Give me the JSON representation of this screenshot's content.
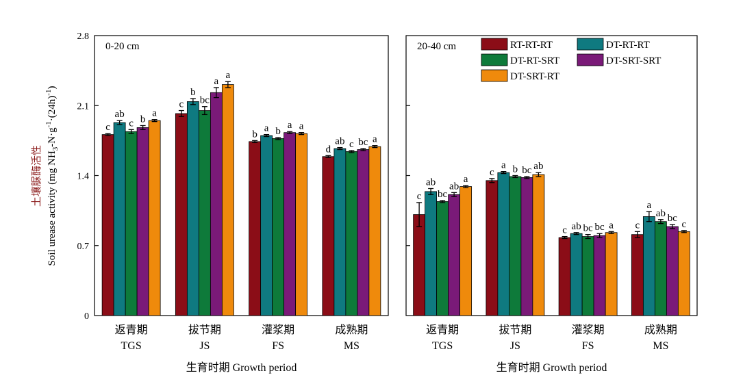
{
  "chart_data": {
    "type": "bar",
    "y_axis": {
      "label_cn": "土壤脲酶活性",
      "label": "Soil urease activity (mg NH3-N·g-1·(24h)-1)",
      "ylim": [
        0,
        2.8
      ],
      "ticks": [
        "0",
        "0.7",
        "1.4",
        "2.1",
        "2.8"
      ]
    },
    "series": [
      {
        "name": "RT-RT-RT",
        "color": "#8b0d17"
      },
      {
        "name": "DT-RT-RT",
        "color": "#0f7a80"
      },
      {
        "name": "DT-RT-SRT",
        "color": "#0e7a3a"
      },
      {
        "name": "DT-SRT-SRT",
        "color": "#7a1a78"
      },
      {
        "name": "DT-SRT-RT",
        "color": "#ef8a0c"
      }
    ],
    "panels": [
      {
        "title": "0-20 cm",
        "xlabel": "生育时期 Growth period",
        "categories": [
          {
            "cn": "返青期",
            "en": "TGS"
          },
          {
            "cn": "拔节期",
            "en": "JS"
          },
          {
            "cn": "灌浆期",
            "en": "FS"
          },
          {
            "cn": "成熟期",
            "en": "MS"
          }
        ],
        "values": [
          [
            1.81,
            1.93,
            1.84,
            1.88,
            1.95
          ],
          [
            2.02,
            2.14,
            2.05,
            2.23,
            2.31
          ],
          [
            1.74,
            1.8,
            1.77,
            1.83,
            1.82
          ],
          [
            1.59,
            1.67,
            1.64,
            1.66,
            1.69
          ]
        ],
        "errors": [
          [
            0.01,
            0.02,
            0.02,
            0.02,
            0.01
          ],
          [
            0.03,
            0.03,
            0.04,
            0.05,
            0.03
          ],
          [
            0.01,
            0.01,
            0.01,
            0.01,
            0.01
          ],
          [
            0.01,
            0.01,
            0.01,
            0.01,
            0.01
          ]
        ],
        "letters": [
          [
            "c",
            "ab",
            "c",
            "b",
            "a"
          ],
          [
            "c",
            "b",
            "bc",
            "a",
            "a"
          ],
          [
            "b",
            "a",
            "b",
            "a",
            "a"
          ],
          [
            "d",
            "ab",
            "c",
            "bc",
            "a"
          ]
        ]
      },
      {
        "title": "20-40 cm",
        "xlabel": "生育时期 Growth period",
        "categories": [
          {
            "cn": "返青期",
            "en": "TGS"
          },
          {
            "cn": "拔节期",
            "en": "JS"
          },
          {
            "cn": "灌浆期",
            "en": "FS"
          },
          {
            "cn": "成熟期",
            "en": "MS"
          }
        ],
        "values": [
          [
            1.01,
            1.24,
            1.14,
            1.21,
            1.29
          ],
          [
            1.35,
            1.43,
            1.39,
            1.38,
            1.41
          ],
          [
            0.78,
            0.82,
            0.79,
            0.8,
            0.83
          ],
          [
            0.81,
            0.99,
            0.94,
            0.89,
            0.84
          ]
        ],
        "errors": [
          [
            0.12,
            0.03,
            0.01,
            0.02,
            0.01
          ],
          [
            0.02,
            0.01,
            0.01,
            0.01,
            0.02
          ],
          [
            0.01,
            0.01,
            0.02,
            0.02,
            0.01
          ],
          [
            0.03,
            0.05,
            0.02,
            0.02,
            0.01
          ]
        ],
        "letters": [
          [
            "c",
            "ab",
            "bc",
            "ab",
            "a"
          ],
          [
            "c",
            "a",
            "b",
            "bc",
            "ab"
          ],
          [
            "c",
            "ab",
            "bc",
            "bc",
            "a"
          ],
          [
            "c",
            "a",
            "ab",
            "bc",
            "c"
          ]
        ]
      }
    ]
  }
}
